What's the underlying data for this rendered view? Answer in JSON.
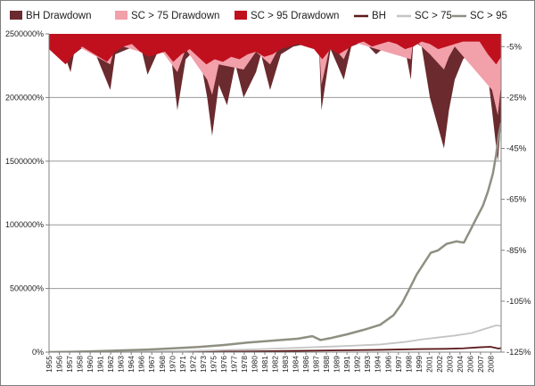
{
  "chart_data": {
    "type": "area",
    "title": "",
    "xlabel": "",
    "ylabel": "",
    "legend_position": "top",
    "grid": true,
    "x_categories": [
      "1955",
      "1956",
      "1957",
      "1958",
      "1960",
      "1961",
      "1962",
      "1963",
      "1964",
      "1966",
      "1967",
      "1968",
      "1970",
      "1971",
      "1972",
      "1973",
      "1975",
      "1976",
      "1977",
      "1978",
      "1980",
      "1981",
      "1982",
      "1983",
      "1984",
      "1986",
      "1987",
      "1988",
      "1989",
      "1991",
      "1992",
      "1993",
      "1994",
      "1996",
      "1997",
      "1998",
      "1999",
      "2001",
      "2002",
      "2003",
      "2004",
      "2006",
      "2007",
      "2008"
    ],
    "left_axis": {
      "label": "",
      "ticks": [
        "0%",
        "500000%",
        "1000000%",
        "1500000%",
        "2000000%",
        "2500000%"
      ],
      "tick_values": [
        0,
        500000,
        1000000,
        1500000,
        2000000,
        2500000
      ],
      "range": [
        0,
        2500000
      ]
    },
    "right_axis": {
      "label": "",
      "ticks": [
        "-5%",
        "-25%",
        "-45%",
        "-65%",
        "-85%",
        "-105%",
        "-125%"
      ],
      "tick_values": [
        -5,
        -25,
        -45,
        -65,
        -85,
        -105,
        -125
      ],
      "range": [
        0,
        -125
      ]
    },
    "series": [
      {
        "name": "BH Drawdown",
        "kind": "drawdown-area",
        "axis": "right",
        "color": "#6b2a2e",
        "x": [
          1955,
          1956.5,
          1957.6,
          1958,
          1960,
          1962.4,
          1963,
          1966,
          1966.9,
          1968,
          1969.6,
          1970.5,
          1971.5,
          1973,
          1974.1,
          1974.7,
          1975.5,
          1976.5,
          1977.5,
          1978.5,
          1980,
          1980.6,
          1981.7,
          1983,
          1984.5,
          1986,
          1987.6,
          1987.9,
          1989,
          1990.6,
          1991.5,
          1993,
          1994.5,
          1996,
          1998,
          1998.7,
          1999,
          2000,
          2001,
          2002.7,
          2003.3,
          2004,
          2005,
          2006.5,
          2007.5,
          2008.5,
          2009.2,
          2009.6
        ],
        "values": [
          -2,
          -5,
          -15,
          -8,
          -3,
          -22,
          -8,
          -4,
          -16,
          -8,
          -5,
          -30,
          -10,
          -5,
          -25,
          -40,
          -20,
          -28,
          -12,
          -25,
          -15,
          -8,
          -22,
          -8,
          -5,
          -4,
          -4,
          -30,
          -6,
          -18,
          -5,
          -3,
          -8,
          -4,
          -6,
          -18,
          -3,
          -5,
          -25,
          -45,
          -30,
          -18,
          -10,
          -5,
          -3,
          -30,
          -50,
          -35
        ]
      },
      {
        "name": "SC > 75 Drawdown",
        "kind": "drawdown-area",
        "axis": "right",
        "color": "#f2a0aa",
        "x": [
          1955,
          1957.6,
          1958,
          1962.4,
          1963,
          1966.9,
          1968,
          1970.5,
          1971.5,
          1974.1,
          1974.7,
          1975.5,
          1978.5,
          1980,
          1981.7,
          1983,
          1987.6,
          1987.9,
          1989,
          1990.6,
          1991.5,
          1998.7,
          1999,
          2001,
          2002.7,
          2003.3,
          2004,
          2008.5,
          2009.2,
          2009.6
        ],
        "values": [
          -1,
          -8,
          -4,
          -12,
          -4,
          -8,
          -4,
          -15,
          -6,
          -18,
          -24,
          -12,
          -14,
          -7,
          -12,
          -4,
          -3,
          -20,
          -4,
          -10,
          -3,
          -10,
          -2,
          -8,
          -14,
          -9,
          -5,
          -22,
          -32,
          -20
        ]
      },
      {
        "name": "SC > 95 Drawdown",
        "kind": "drawdown-area",
        "axis": "right",
        "color": "#c0101e",
        "x": [
          1955,
          1956,
          1957,
          1958,
          1959,
          1960,
          1961,
          1962,
          1963,
          1964,
          1965,
          1966,
          1967,
          1968,
          1969,
          1970,
          1971,
          1972,
          1973,
          1974,
          1975,
          1976,
          1977,
          1978,
          1979,
          1980,
          1981,
          1982,
          1983,
          1984,
          1985,
          1986,
          1987,
          1988,
          1989,
          1990,
          1991,
          1992,
          1993,
          1994,
          1995,
          1996,
          1997,
          1998,
          1999,
          2000,
          2001,
          2002,
          2003,
          2004,
          2005,
          2006,
          2007,
          2008,
          2009,
          2009.6
        ],
        "values": [
          -6,
          -9,
          -12,
          -8,
          -5,
          -7,
          -9,
          -11,
          -7,
          -5,
          -4,
          -7,
          -9,
          -8,
          -7,
          -11,
          -8,
          -6,
          -9,
          -12,
          -10,
          -11,
          -9,
          -10,
          -8,
          -7,
          -9,
          -8,
          -6,
          -5,
          -4,
          -5,
          -6,
          -10,
          -6,
          -8,
          -6,
          -4,
          -3,
          -5,
          -4,
          -3,
          -4,
          -6,
          -5,
          -3,
          -4,
          -6,
          -5,
          -4,
          -3,
          -3,
          -3,
          -8,
          -12,
          -9
        ]
      },
      {
        "name": "BH",
        "kind": "line",
        "axis": "left",
        "color": "#5c1a1a",
        "x": [
          1955,
          1960,
          1965,
          1970,
          1975,
          1980,
          1985,
          1990,
          1995,
          2000,
          2003,
          2005,
          2007,
          2008.3,
          2009.3,
          2009.6
        ],
        "values": [
          0,
          1000,
          2000,
          3000,
          4000,
          6000,
          10000,
          14000,
          18000,
          24000,
          26000,
          30000,
          38000,
          42000,
          28000,
          32000
        ]
      },
      {
        "name": "SC > 75",
        "kind": "line",
        "axis": "left",
        "color": "#c4c4c4",
        "x": [
          1955,
          1960,
          1965,
          1970,
          1975,
          1980,
          1985,
          1990,
          1995,
          1998,
          2000,
          2002,
          2004,
          2006,
          2007,
          2008,
          2009,
          2009.6
        ],
        "values": [
          0,
          1500,
          4000,
          8000,
          14000,
          22000,
          34000,
          46000,
          60000,
          80000,
          100000,
          115000,
          130000,
          150000,
          170000,
          190000,
          210000,
          205000
        ]
      },
      {
        "name": "SC > 95",
        "kind": "line",
        "axis": "left",
        "color": "#8f8f82",
        "x": [
          1955,
          1958,
          1961,
          1964,
          1967,
          1970,
          1973,
          1976,
          1979,
          1982,
          1985,
          1986.8,
          1987.8,
          1989,
          1991,
          1993,
          1995,
          1996.6,
          1997.6,
          1998.4,
          1999.4,
          2000.3,
          2001.1,
          2002,
          2003,
          2004.2,
          2005.1,
          2005.9,
          2006.6,
          2007.4,
          2008,
          2008.6,
          2009,
          2009.3,
          2009.6
        ],
        "values": [
          0,
          3000,
          8000,
          14000,
          20000,
          30000,
          40000,
          55000,
          75000,
          90000,
          105000,
          125000,
          95000,
          110000,
          140000,
          175000,
          215000,
          290000,
          380000,
          480000,
          610000,
          700000,
          780000,
          800000,
          850000,
          870000,
          860000,
          960000,
          1050000,
          1150000,
          1260000,
          1400000,
          1550000,
          1700000,
          1800000
        ]
      }
    ]
  }
}
